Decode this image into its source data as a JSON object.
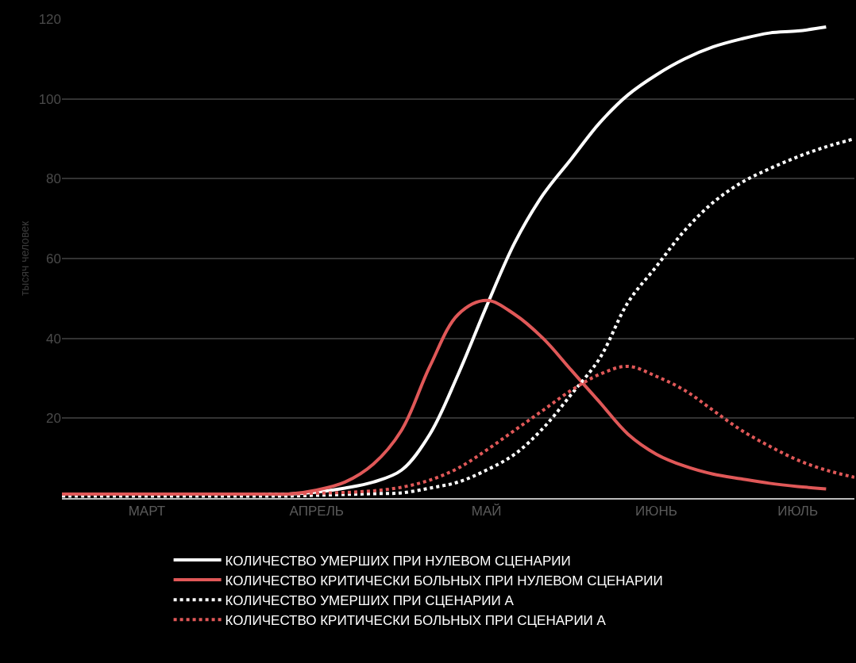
{
  "chart_data": {
    "type": "line",
    "ylabel": "тысяч человек",
    "categories": [
      null,
      null,
      null,
      "МАРТ",
      null,
      null,
      null,
      null,
      null,
      "АПРЕЛЬ",
      null,
      null,
      null,
      null,
      null,
      "МАЙ",
      null,
      null,
      null,
      null,
      null,
      "ИЮНЬ",
      null,
      null,
      null,
      null,
      "ИЮЛЬ",
      null,
      null
    ],
    "ylim": [
      0,
      120
    ],
    "yticks": [
      20,
      40,
      60,
      80,
      100,
      120
    ],
    "grid": "y",
    "legend": "bottom",
    "marker": "none",
    "series": [
      {
        "name": "КОЛИЧЕСТВО УМЕРШИХ ПРИ НУЛЕВОМ СЦЕНАРИИ",
        "color": "#ffffff",
        "line_style": "solid",
        "values": [
          1,
          1,
          1,
          1,
          1,
          1,
          1,
          1,
          1,
          1.5,
          2.5,
          4,
          7,
          16,
          31,
          48,
          64,
          76,
          85,
          94,
          101,
          106,
          110,
          113,
          115,
          116.5,
          117,
          118,
          null
        ]
      },
      {
        "name": "КОЛИЧЕСТВО КРИТИЧЕСКИ БОЛЬНЫХ ПРИ НУЛЕВОМ СЦЕНАРИИ",
        "color": "#e05858",
        "line_style": "solid",
        "values": [
          1,
          1,
          1,
          1,
          1,
          1,
          1,
          1,
          1,
          2,
          4,
          8.5,
          17,
          33,
          46,
          49.5,
          46,
          40,
          32,
          24,
          16,
          11,
          8,
          6,
          4.8,
          3.7,
          2.9,
          2.3,
          null
        ]
      },
      {
        "name": "КОЛИЧЕСТВО УМЕРШИХ ПРИ СЦЕНАРИИ А",
        "color": "#ffffff",
        "line_style": "dotted",
        "values": [
          0.5,
          0.5,
          0.5,
          0.5,
          0.5,
          0.5,
          0.5,
          0.5,
          0.5,
          0.7,
          0.9,
          1.1,
          1.3,
          2.5,
          4,
          7,
          11,
          17.5,
          26,
          35,
          49,
          58,
          67,
          74,
          79,
          82.5,
          85.5,
          88,
          90
        ]
      },
      {
        "name": "КОЛИЧЕСТВО КРИТИЧЕСКИ БОЛЬНЫХ ПРИ СЦЕНАРИИ А",
        "color": "#e05858",
        "line_style": "dotted",
        "values": [
          1,
          1,
          1,
          1,
          1,
          1,
          1,
          1,
          1,
          1.2,
          1.4,
          1.8,
          2.7,
          4.5,
          7.5,
          12,
          17,
          22,
          27,
          31,
          33,
          30.5,
          27,
          22,
          17,
          13,
          9.5,
          7,
          5.2
        ]
      }
    ]
  }
}
